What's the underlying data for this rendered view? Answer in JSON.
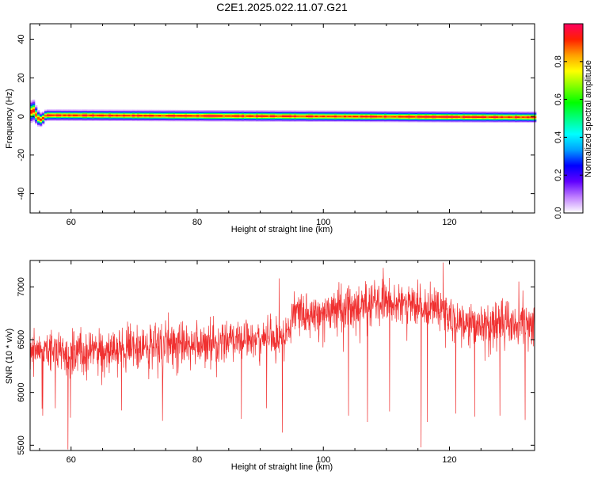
{
  "title": "C2E1.2025.022.11.07.G21",
  "chart_data": [
    {
      "type": "heatmap",
      "xlabel": "Height of straight line (km)",
      "ylabel": "Frequency (Hz)",
      "xlim": [
        53.5,
        133.5
      ],
      "ylim": [
        -50,
        48
      ],
      "xticks": [
        60,
        80,
        100,
        120
      ],
      "yticks": [
        40,
        20,
        0,
        -20,
        -40
      ],
      "ridge": [
        {
          "x": 53.5,
          "y": 1.5,
          "w": 4
        },
        {
          "x": 54.0,
          "y": 3.0,
          "w": 4
        },
        {
          "x": 54.7,
          "y": -1.0,
          "w": 3
        },
        {
          "x": 55.3,
          "y": -2.0,
          "w": 2.5
        },
        {
          "x": 56.0,
          "y": 0.5,
          "w": 2
        },
        {
          "x": 58.0,
          "y": 0.5,
          "w": 2
        },
        {
          "x": 133.5,
          "y": -0.5,
          "w": 2
        }
      ],
      "colorbar": {
        "label": "Normalized spectral amplitude",
        "ticks": [
          "0.0",
          "0.2",
          "0.4",
          "0.6",
          "0.8"
        ],
        "tick_values": [
          0.0,
          0.2,
          0.4,
          0.6,
          0.8
        ],
        "range": [
          0,
          1
        ],
        "colormap": [
          "#ffffff",
          "#c080ff",
          "#6000ff",
          "#0000ff",
          "#00a0ff",
          "#00ffff",
          "#00ff80",
          "#00ff00",
          "#80ff00",
          "#ffff00",
          "#ffa000",
          "#ff2000",
          "#ff0060"
        ]
      }
    },
    {
      "type": "line",
      "xlabel": "Height of straight line (km)",
      "ylabel": "SNR (10 * v/v)",
      "xlim": [
        53.5,
        133.5
      ],
      "ylim": [
        5450,
        7250
      ],
      "xticks": [
        60,
        80,
        100,
        120
      ],
      "yticks": [
        5500,
        6000,
        6500,
        7000
      ],
      "color": "#f03030",
      "trend": [
        {
          "x": 53.5,
          "y": 6400
        },
        {
          "x": 60,
          "y": 6380
        },
        {
          "x": 70,
          "y": 6420
        },
        {
          "x": 80,
          "y": 6470
        },
        {
          "x": 90,
          "y": 6520
        },
        {
          "x": 94,
          "y": 6560
        },
        {
          "x": 95,
          "y": 6740
        },
        {
          "x": 100,
          "y": 6760
        },
        {
          "x": 105,
          "y": 6800
        },
        {
          "x": 108,
          "y": 6880
        },
        {
          "x": 112,
          "y": 6860
        },
        {
          "x": 118,
          "y": 6800
        },
        {
          "x": 120,
          "y": 6700
        },
        {
          "x": 125,
          "y": 6650
        },
        {
          "x": 133.5,
          "y": 6660
        }
      ],
      "noise_amplitude": 170,
      "spikes": [
        {
          "x": 55.5,
          "y": 5780
        },
        {
          "x": 57.5,
          "y": 5850
        },
        {
          "x": 59.5,
          "y": 5460
        },
        {
          "x": 59.9,
          "y": 5760
        },
        {
          "x": 68.0,
          "y": 5830
        },
        {
          "x": 74.5,
          "y": 5730
        },
        {
          "x": 87.0,
          "y": 5750
        },
        {
          "x": 91.0,
          "y": 5850
        },
        {
          "x": 93.5,
          "y": 5620
        },
        {
          "x": 104.0,
          "y": 5780
        },
        {
          "x": 107.0,
          "y": 5720
        },
        {
          "x": 110.5,
          "y": 5820
        },
        {
          "x": 115.5,
          "y": 5480
        },
        {
          "x": 116.5,
          "y": 5720
        },
        {
          "x": 119.0,
          "y": 5560
        },
        {
          "x": 121.0,
          "y": 5800
        },
        {
          "x": 124.0,
          "y": 5770
        },
        {
          "x": 128.0,
          "y": 5780
        },
        {
          "x": 132.0,
          "y": 5740
        },
        {
          "x": 119.0,
          "y": 7230
        },
        {
          "x": 109.5,
          "y": 7180
        },
        {
          "x": 93.0,
          "y": 7080
        },
        {
          "x": 131.0,
          "y": 7050
        }
      ]
    }
  ]
}
